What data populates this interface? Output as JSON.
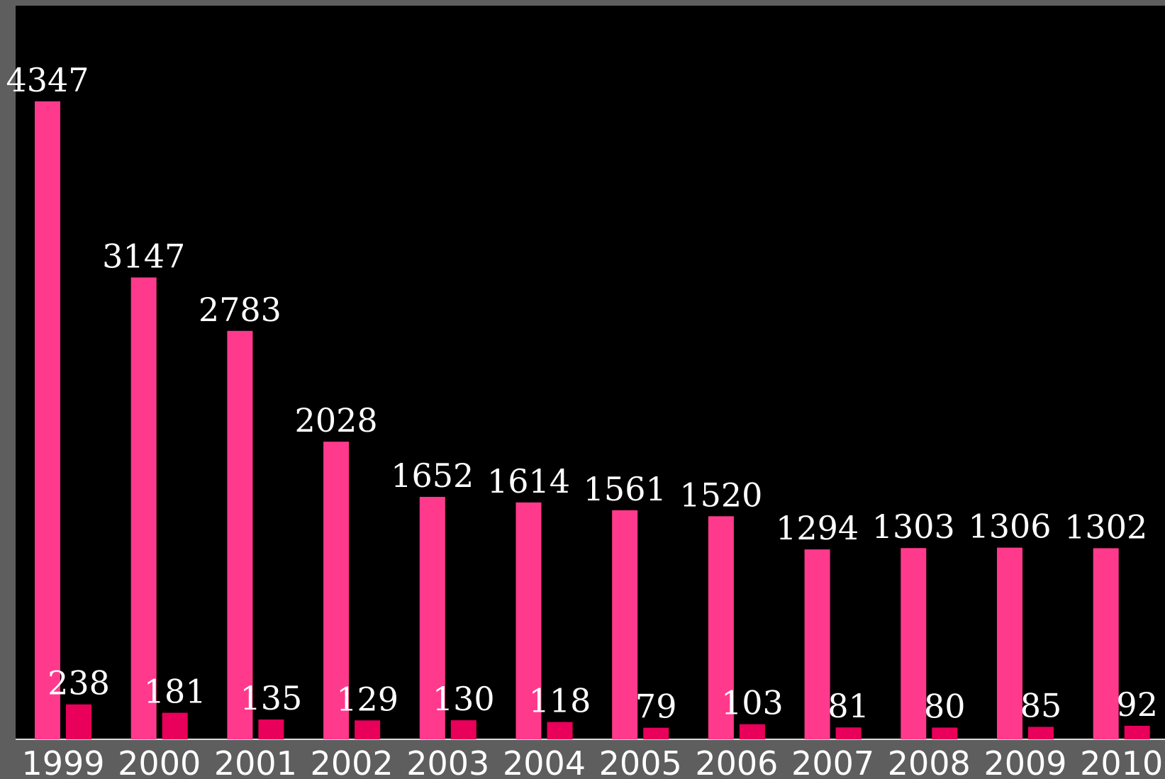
{
  "chart_data": {
    "type": "bar",
    "title": "",
    "xlabel": "",
    "ylabel": "",
    "ylim": [
      0,
      4500
    ],
    "grid": false,
    "legend": "none",
    "categories": [
      "1999",
      "2000",
      "2001",
      "2002",
      "2003",
      "2004",
      "2005",
      "2006",
      "2007",
      "2008",
      "2009",
      "2010"
    ],
    "series": [
      {
        "values": [
          4347,
          3147,
          2783,
          2028,
          1652,
          1614,
          1561,
          1520,
          1294,
          1303,
          1306,
          1302
        ],
        "color": "#ff3a8c"
      },
      {
        "values": [
          238,
          181,
          135,
          129,
          130,
          118,
          79,
          103,
          81,
          80,
          85,
          92
        ],
        "color": "#e8005a"
      }
    ],
    "colors": {
      "page_background": "#5e5e5e",
      "plot_background": "#000000",
      "label_text": "#ffffff",
      "baseline": "#d9d9d9"
    }
  }
}
